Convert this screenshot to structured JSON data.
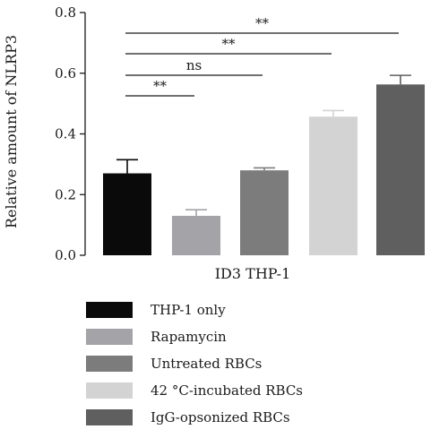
{
  "chart_data": {
    "type": "bar",
    "ylabel": "Relative amount of NLRP3",
    "xlabel": "ID3 THP-1",
    "ylim": [
      0,
      0.8
    ],
    "yticks": [
      "0.0",
      "0.2",
      "0.4",
      "0.6",
      "0.8"
    ],
    "ytick_values": [
      0,
      0.2,
      0.4,
      0.6,
      0.8
    ],
    "series": [
      {
        "name": "THP-1 only",
        "value": 0.27,
        "error": 0.045,
        "color": "#0a0a0a"
      },
      {
        "name": "Rapamycin",
        "value": 0.13,
        "error": 0.02,
        "color": "#a3a3a8"
      },
      {
        "name": "Untreated RBCs",
        "value": 0.28,
        "error": 0.008,
        "color": "#7c7c7c"
      },
      {
        "name": "42 °C-incubated RBCs",
        "value": 0.457,
        "error": 0.02,
        "color": "#d3d3d3"
      },
      {
        "name": "IgG-opsonized RBCs",
        "value": 0.563,
        "error": 0.03,
        "color": "#5f5f5f"
      }
    ],
    "significance": [
      {
        "from": 0,
        "to": 4,
        "label": "**"
      },
      {
        "from": 0,
        "to": 3,
        "label": "**"
      },
      {
        "from": 0,
        "to": 2,
        "label": "ns"
      },
      {
        "from": 0,
        "to": 1,
        "label": "**"
      }
    ],
    "grid": false,
    "legend_position": "bottom"
  }
}
